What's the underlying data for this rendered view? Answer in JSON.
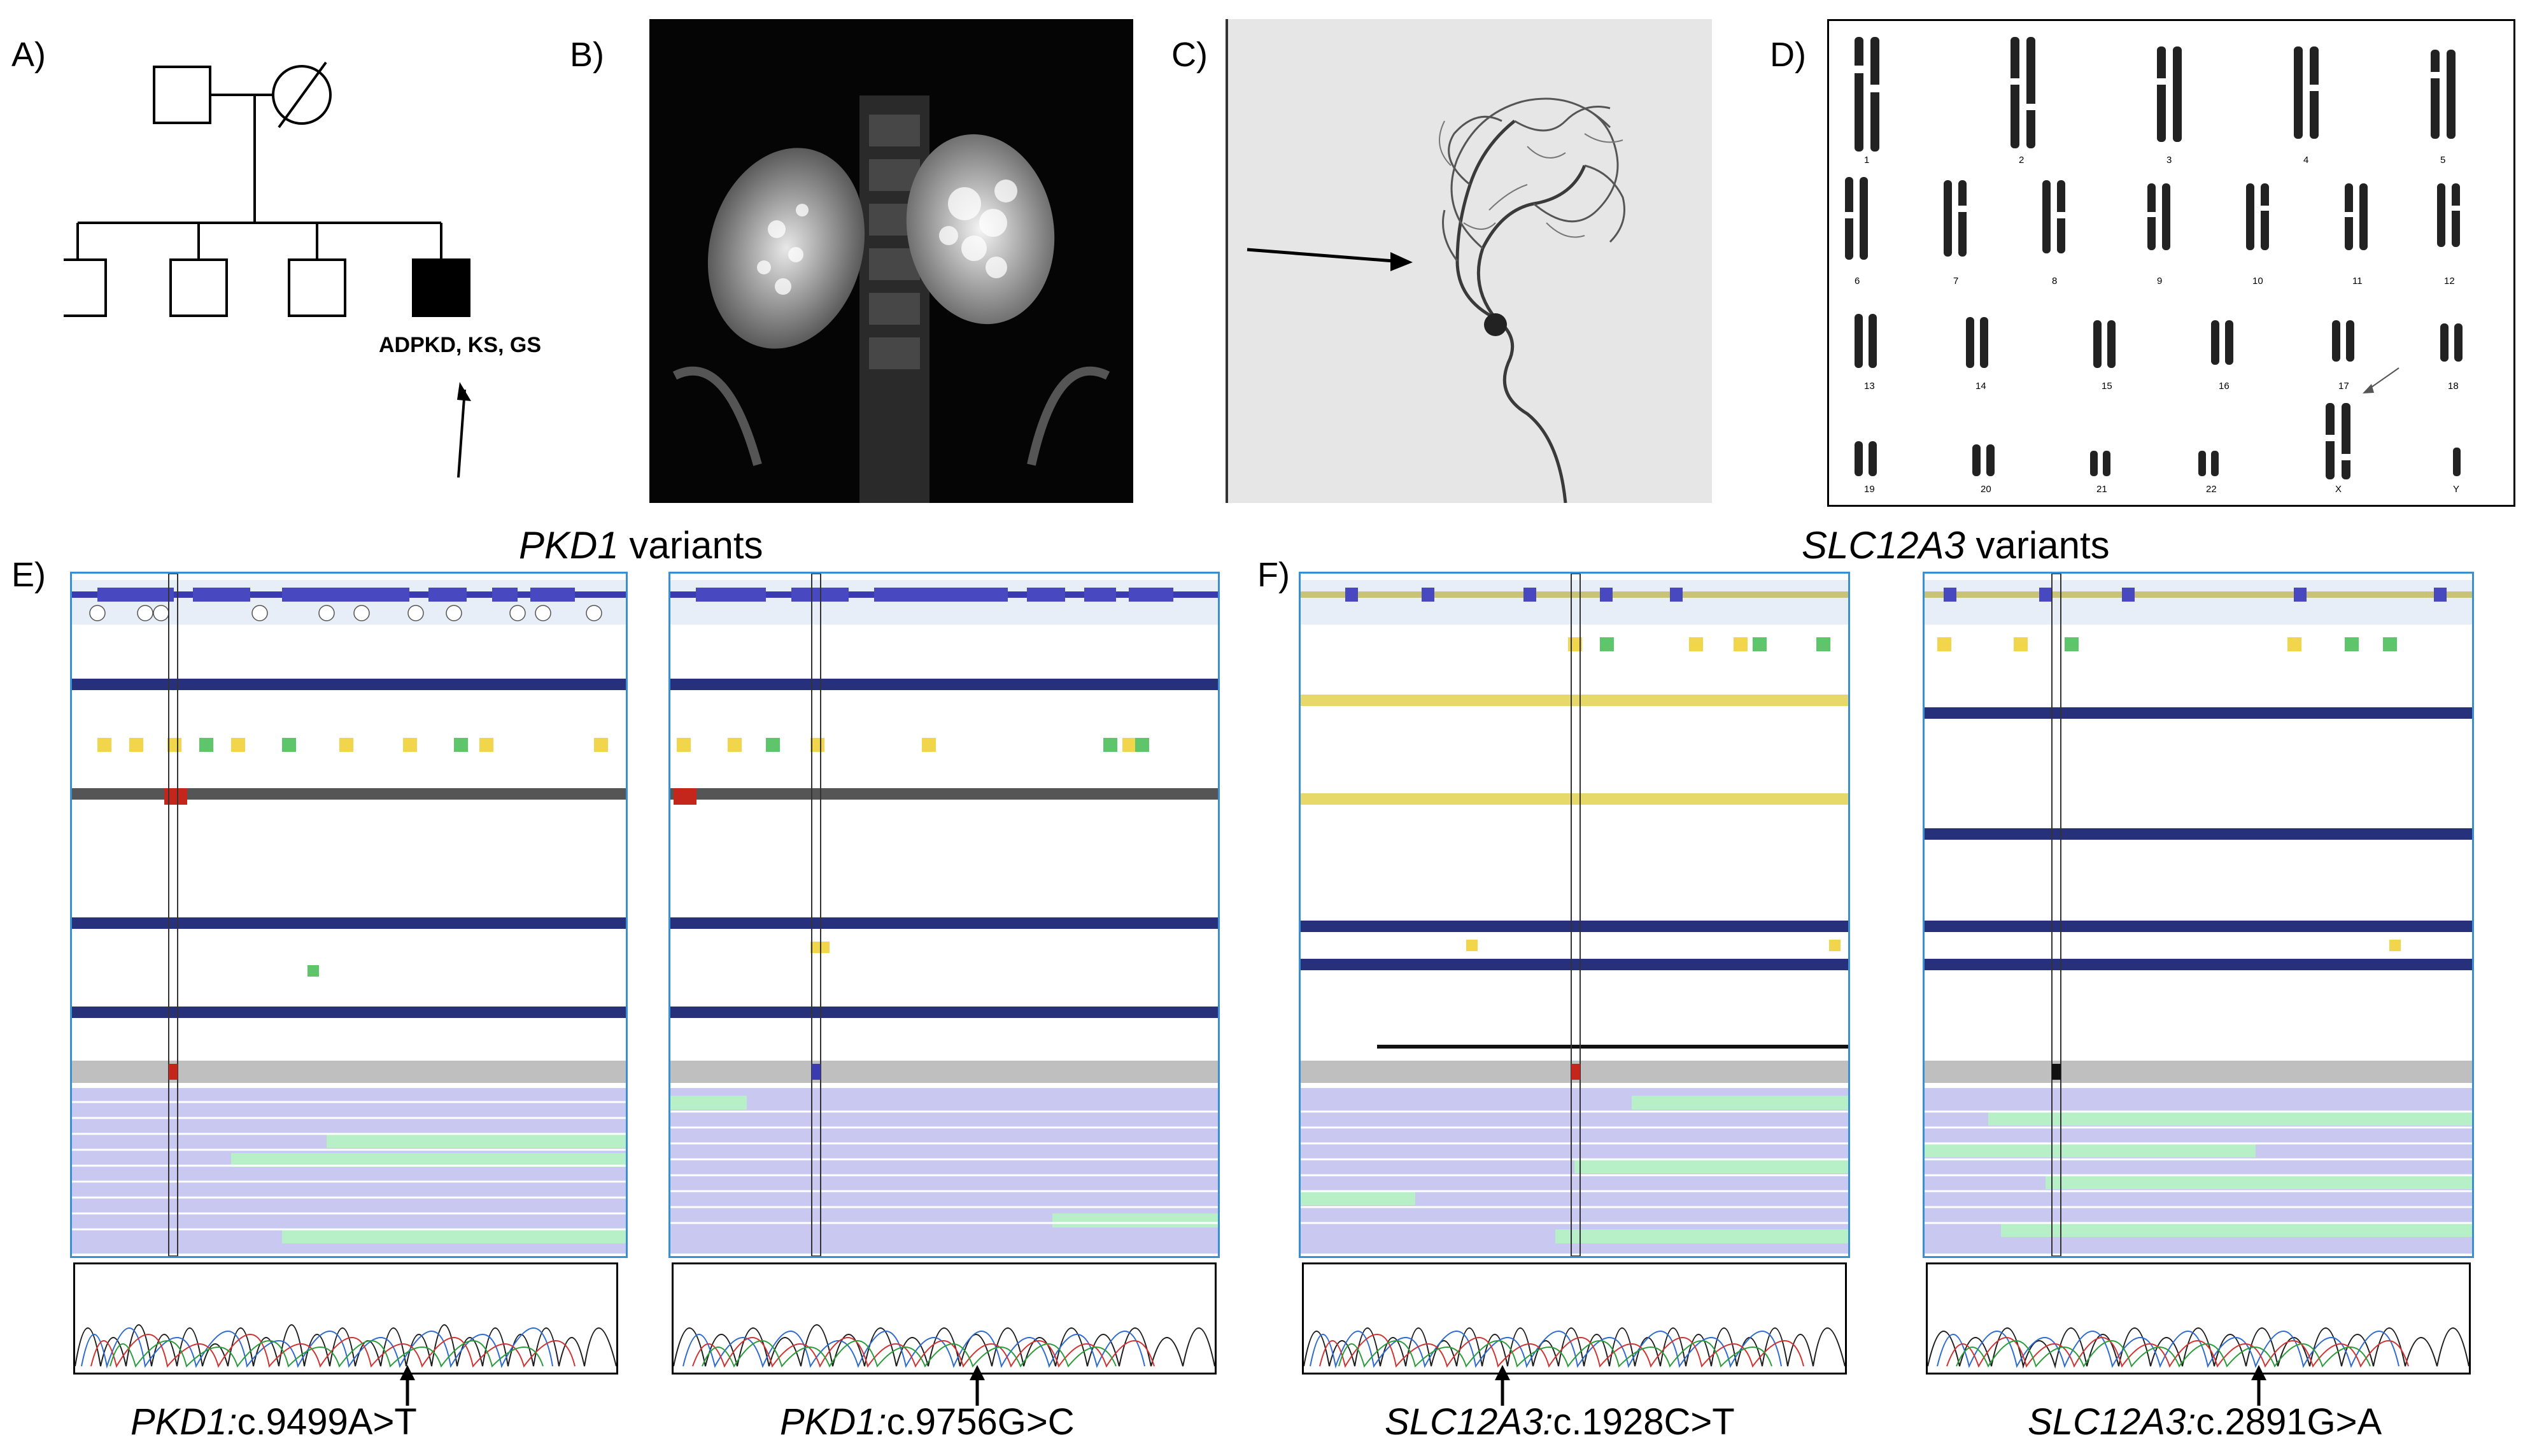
{
  "panels": {
    "a": {
      "label": "A)",
      "proband_text": "ADPKD, KS, GS"
    },
    "b": {
      "label": "B)"
    },
    "c": {
      "label": "C)"
    },
    "d": {
      "label": "D)",
      "chromosomes": [
        "1",
        "2",
        "3",
        "4",
        "5",
        "6",
        "7",
        "8",
        "9",
        "10",
        "11",
        "12",
        "13",
        "14",
        "15",
        "16",
        "17",
        "18",
        "19",
        "20",
        "21",
        "22",
        "X",
        "Y"
      ]
    },
    "e": {
      "label": "E)",
      "title_gene": "PKD1",
      "title_suffix": " variants",
      "variants": [
        {
          "gene": "PKD1:",
          "change": "c.9499A>T"
        },
        {
          "gene": "PKD1:",
          "change": "c.9756G>C"
        }
      ]
    },
    "f": {
      "label": "F)",
      "title_gene": "SLC12A3",
      "title_suffix": " variants",
      "variants": [
        {
          "gene": "SLC12A3:",
          "change": "c.1928C>T"
        },
        {
          "gene": "SLC12A3:",
          "change": "c.2891G>A"
        }
      ]
    }
  },
  "colors": {
    "track_border": "#3a8fd0",
    "read_fill": "#c8c8f0",
    "read_alt": "#b7f0c6",
    "exon_bar": "#3b3bb0",
    "aa_bar": "#27307a"
  }
}
